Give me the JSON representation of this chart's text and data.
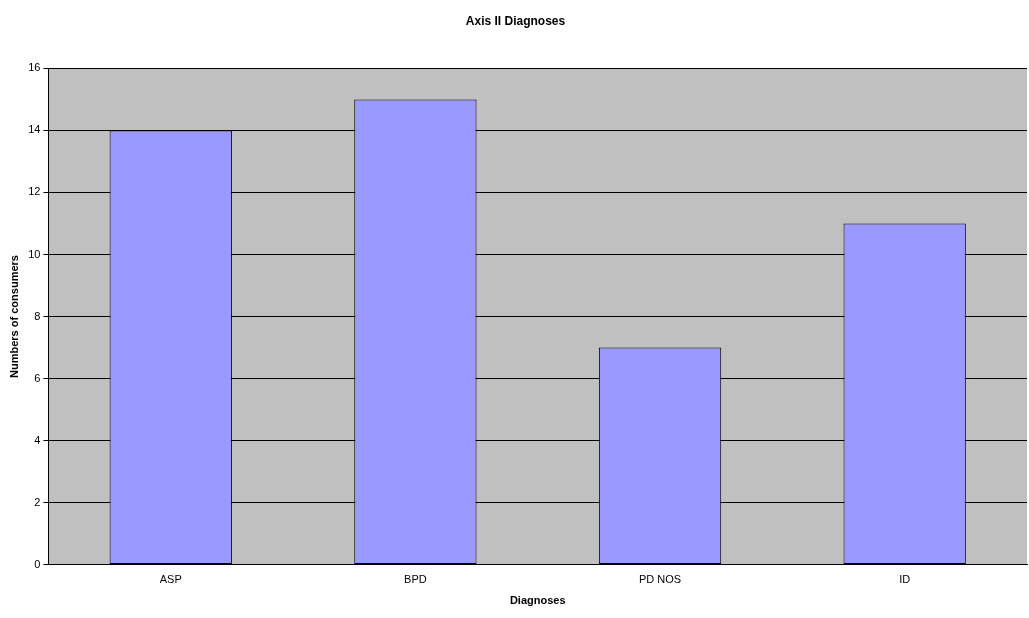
{
  "chart_data": {
    "type": "bar",
    "title": "Axis II Diagnoses",
    "xlabel": "Diagnoses",
    "ylabel": "Numbers of consumers",
    "categories": [
      "ASP",
      "BPD",
      "PD NOS",
      "ID"
    ],
    "values": [
      14,
      15,
      7,
      11
    ],
    "color": "#9999ff",
    "ylim": [
      0,
      16
    ],
    "yticks": [
      0,
      2,
      4,
      6,
      8,
      10,
      12,
      14,
      16
    ],
    "grid": "y",
    "legend": false
  }
}
